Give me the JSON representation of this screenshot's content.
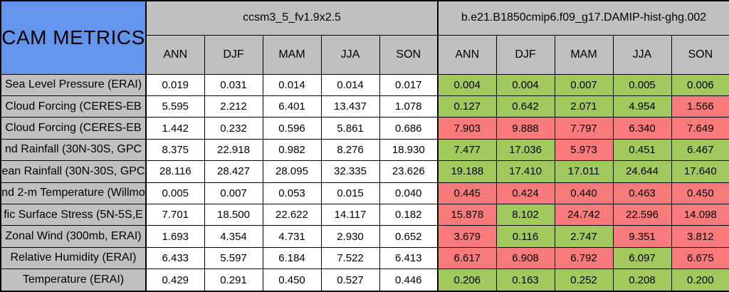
{
  "chart_data": {
    "type": "table",
    "title": "CAM METRICS",
    "column_groups": [
      {
        "name": "ccsm3_5_fv1.9x2.5",
        "seasons": [
          "ANN",
          "DJF",
          "MAM",
          "JJA",
          "SON"
        ]
      },
      {
        "name": "b.e21.B1850cmip6.f09_g17.DAMIP-hist-ghg.002",
        "seasons": [
          "ANN",
          "DJF",
          "MAM",
          "JJA",
          "SON"
        ]
      }
    ],
    "rows": [
      {
        "label": "Sea Level Pressure (ERAI)",
        "model1": [
          "0.019",
          "0.031",
          "0.014",
          "0.014",
          "0.017"
        ],
        "model2": [
          "0.004",
          "0.004",
          "0.007",
          "0.005",
          "0.006"
        ],
        "model2_status": [
          "green",
          "green",
          "green",
          "green",
          "green"
        ]
      },
      {
        "label": "Cloud Forcing (CERES-EB",
        "model1": [
          "5.595",
          "2.212",
          "6.401",
          "13.437",
          "1.078"
        ],
        "model2": [
          "0.127",
          "0.642",
          "2.071",
          "4.954",
          "1.566"
        ],
        "model2_status": [
          "green",
          "green",
          "green",
          "green",
          "red"
        ]
      },
      {
        "label": "Cloud Forcing (CERES-EB",
        "model1": [
          "1.442",
          "0.232",
          "0.596",
          "5.861",
          "0.686"
        ],
        "model2": [
          "7.903",
          "9.888",
          "7.797",
          "6.340",
          "7.649"
        ],
        "model2_status": [
          "red",
          "red",
          "red",
          "red",
          "red"
        ]
      },
      {
        "label": "nd Rainfall (30N-30S, GPC",
        "model1": [
          "8.375",
          "22.918",
          "0.982",
          "8.276",
          "18.930"
        ],
        "model2": [
          "7.477",
          "17.036",
          "5.973",
          "0.451",
          "6.467"
        ],
        "model2_status": [
          "green",
          "green",
          "red",
          "green",
          "green"
        ]
      },
      {
        "label": "ean Rainfall (30N-30S, GPC",
        "model1": [
          "28.116",
          "28.427",
          "28.095",
          "32.335",
          "23.626"
        ],
        "model2": [
          "19.188",
          "17.410",
          "17.011",
          "24.644",
          "17.640"
        ],
        "model2_status": [
          "green",
          "green",
          "green",
          "green",
          "green"
        ]
      },
      {
        "label": "nd 2-m Temperature (Willmo",
        "model1": [
          "0.005",
          "0.007",
          "0.053",
          "0.015",
          "0.040"
        ],
        "model2": [
          "0.445",
          "0.424",
          "0.440",
          "0.463",
          "0.450"
        ],
        "model2_status": [
          "red",
          "red",
          "red",
          "red",
          "red"
        ]
      },
      {
        "label": "fic Surface Stress (5N-5S,E",
        "model1": [
          "7.701",
          "18.500",
          "22.622",
          "14.117",
          "0.182"
        ],
        "model2": [
          "15.878",
          "8.102",
          "24.742",
          "22.596",
          "14.098"
        ],
        "model2_status": [
          "red",
          "green",
          "red",
          "red",
          "red"
        ]
      },
      {
        "label": "Zonal Wind (300mb, ERAI)",
        "model1": [
          "1.693",
          "4.354",
          "4.731",
          "2.930",
          "0.652"
        ],
        "model2": [
          "3.679",
          "0.116",
          "2.747",
          "9.351",
          "3.812"
        ],
        "model2_status": [
          "red",
          "green",
          "green",
          "red",
          "red"
        ]
      },
      {
        "label": "Relative Humidity (ERAI)",
        "model1": [
          "6.433",
          "5.597",
          "6.184",
          "7.522",
          "6.413"
        ],
        "model2": [
          "6.617",
          "6.908",
          "6.792",
          "6.097",
          "6.675"
        ],
        "model2_status": [
          "red",
          "red",
          "red",
          "green",
          "red"
        ]
      },
      {
        "label": "Temperature (ERAI)",
        "model1": [
          "0.429",
          "0.291",
          "0.450",
          "0.527",
          "0.446"
        ],
        "model2": [
          "0.206",
          "0.163",
          "0.252",
          "0.208",
          "0.200"
        ],
        "model2_status": [
          "green",
          "green",
          "green",
          "green",
          "green"
        ]
      }
    ]
  },
  "colors": {
    "header_blue": "#6495ED",
    "header_grey": "#C0C0C0",
    "green": "#A2C95E",
    "red": "#F87A7A",
    "border": "#000000",
    "cell_white": "#FFFFFF"
  }
}
